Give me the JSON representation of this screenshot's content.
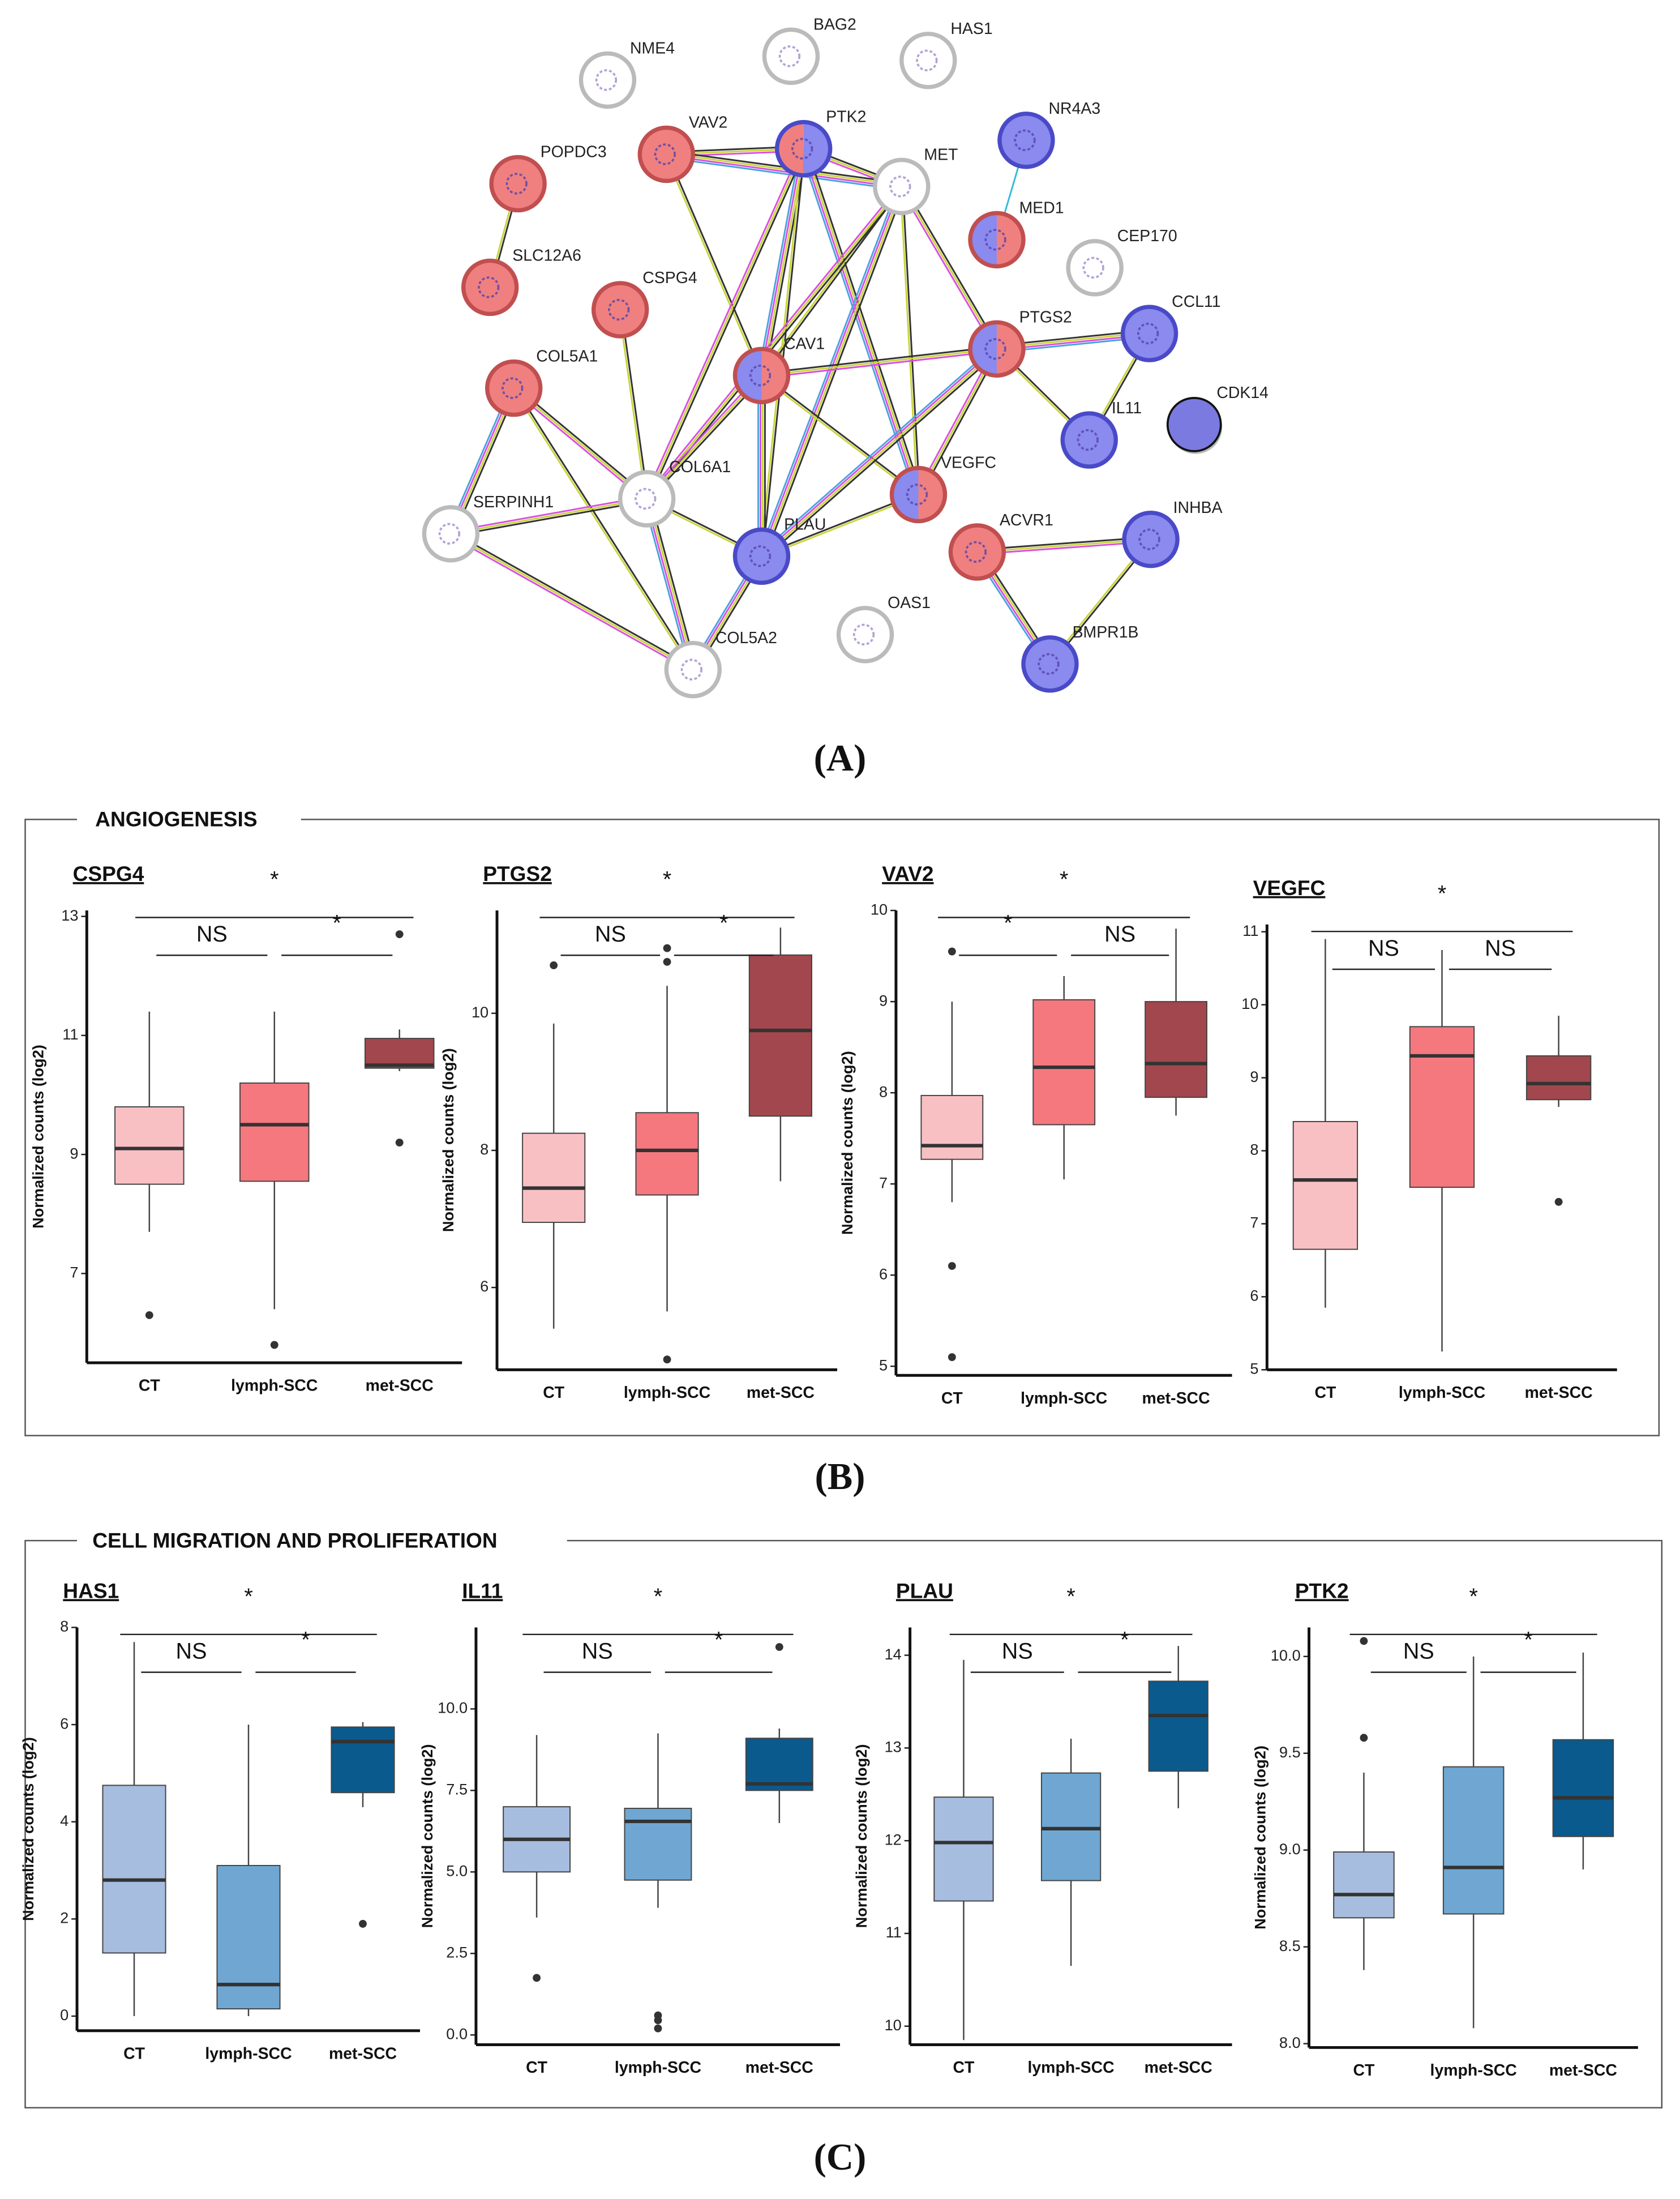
{
  "panel_labels": [
    "(A)",
    "(B)",
    "(C)"
  ],
  "sections": [
    {
      "title": "ANGIOGENESIS"
    },
    {
      "title": "CELL MIGRATION AND PROLIFERATION"
    }
  ],
  "network": {
    "nodes": [
      {
        "label": "NME4",
        "fill": "white"
      },
      {
        "label": "BAG2",
        "fill": "white"
      },
      {
        "label": "HAS1",
        "fill": "white"
      },
      {
        "label": "VAV2",
        "fill": "red"
      },
      {
        "label": "PTK2",
        "fill": "red-blue"
      },
      {
        "label": "POPDC3",
        "fill": "red"
      },
      {
        "label": "MET",
        "fill": "white"
      },
      {
        "label": "NR4A3",
        "fill": "blue"
      },
      {
        "label": "MED1",
        "fill": "blue-red"
      },
      {
        "label": "CEP170",
        "fill": "white"
      },
      {
        "label": "SLC12A6",
        "fill": "red"
      },
      {
        "label": "CSPG4",
        "fill": "red"
      },
      {
        "label": "CAV1",
        "fill": "blue-red"
      },
      {
        "label": "PTGS2",
        "fill": "blue-red"
      },
      {
        "label": "CCL11",
        "fill": "blue"
      },
      {
        "label": "IL11",
        "fill": "blue"
      },
      {
        "label": "CDK14",
        "fill": "solid"
      },
      {
        "label": "COL5A1",
        "fill": "red"
      },
      {
        "label": "COL6A1",
        "fill": "white"
      },
      {
        "label": "VEGFC",
        "fill": "blue-red"
      },
      {
        "label": "SERPINH1",
        "fill": "white"
      },
      {
        "label": "PLAU",
        "fill": "blue"
      },
      {
        "label": "ACVR1",
        "fill": "red"
      },
      {
        "label": "INHBA",
        "fill": "blue"
      },
      {
        "label": "OAS1",
        "fill": "white"
      },
      {
        "label": "COL5A2",
        "fill": "white"
      },
      {
        "label": "BMPR1B",
        "fill": "blue"
      }
    ],
    "edges": [
      [
        5,
        10
      ],
      [
        3,
        4
      ],
      [
        3,
        6
      ],
      [
        3,
        12
      ],
      [
        4,
        6
      ],
      [
        4,
        12
      ],
      [
        4,
        21
      ],
      [
        4,
        18
      ],
      [
        4,
        19
      ],
      [
        6,
        12
      ],
      [
        6,
        13
      ],
      [
        6,
        21
      ],
      [
        6,
        19
      ],
      [
        6,
        18
      ],
      [
        7,
        8
      ],
      [
        11,
        18
      ],
      [
        12,
        13
      ],
      [
        12,
        21
      ],
      [
        12,
        19
      ],
      [
        12,
        18
      ],
      [
        13,
        14
      ],
      [
        13,
        15
      ],
      [
        13,
        19
      ],
      [
        13,
        21
      ],
      [
        14,
        15
      ],
      [
        17,
        18
      ],
      [
        17,
        20
      ],
      [
        17,
        25
      ],
      [
        18,
        20
      ],
      [
        18,
        25
      ],
      [
        18,
        21
      ],
      [
        20,
        25
      ],
      [
        21,
        25
      ],
      [
        21,
        19
      ],
      [
        22,
        23
      ],
      [
        22,
        26
      ],
      [
        23,
        26
      ]
    ]
  },
  "chart_data": [
    {
      "type": "box",
      "section": 0,
      "title": "CSPG4",
      "y_label": "Normalized counts (log2)",
      "categories": [
        "CT",
        "lymph-SCC",
        "met-SCC"
      ],
      "colors": [
        "#f9c0c4",
        "#f5787f",
        "#a2474d"
      ],
      "ylim": [
        5.5,
        13.1
      ],
      "yticks": [
        7,
        9,
        11,
        13
      ],
      "boxes": [
        {
          "min": 7.7,
          "q1": 8.5,
          "median": 9.1,
          "q3": 9.8,
          "max": 11.4,
          "outliers": [
            6.3
          ]
        },
        {
          "min": 6.4,
          "q1": 8.55,
          "median": 9.5,
          "q3": 10.2,
          "max": 11.4,
          "outliers": [
            5.8
          ]
        },
        {
          "min": 10.4,
          "q1": 10.45,
          "median": 10.5,
          "q3": 10.95,
          "max": 11.1,
          "outliers": [
            12.7,
            9.2
          ]
        }
      ],
      "annotations": [
        {
          "pair": [
            0,
            2
          ],
          "label": "*"
        },
        {
          "pair": [
            0,
            1
          ],
          "label": "NS"
        },
        {
          "pair": [
            1,
            2
          ],
          "label": "*"
        }
      ]
    },
    {
      "type": "box",
      "section": 0,
      "title": "PTGS2",
      "y_label": "Normalized counts (log2)",
      "categories": [
        "CT",
        "lymph-SCC",
        "met-SCC"
      ],
      "colors": [
        "#f9c0c4",
        "#f5787f",
        "#a2474d"
      ],
      "ylim": [
        4.8,
        11.5
      ],
      "yticks": [
        6,
        8,
        10
      ],
      "boxes": [
        {
          "min": 5.4,
          "q1": 6.95,
          "median": 7.45,
          "q3": 8.25,
          "max": 9.85,
          "outliers": [
            10.7
          ]
        },
        {
          "min": 5.65,
          "q1": 7.35,
          "median": 8.0,
          "q3": 8.55,
          "max": 10.4,
          "outliers": [
            10.95,
            10.75,
            4.95
          ]
        },
        {
          "min": 7.55,
          "q1": 8.5,
          "median": 9.75,
          "q3": 10.85,
          "max": 11.25,
          "outliers": []
        }
      ],
      "annotations": [
        {
          "pair": [
            0,
            2
          ],
          "label": "*"
        },
        {
          "pair": [
            0,
            1
          ],
          "label": "NS"
        },
        {
          "pair": [
            1,
            2
          ],
          "label": "*"
        }
      ]
    },
    {
      "type": "box",
      "section": 0,
      "title": "VAV2",
      "y_label": "Normalized counts (log2)",
      "categories": [
        "CT",
        "lymph-SCC",
        "met-SCC"
      ],
      "colors": [
        "#f9c0c4",
        "#f5787f",
        "#a2474d"
      ],
      "ylim": [
        4.9,
        10
      ],
      "yticks": [
        5,
        6,
        7,
        8,
        9,
        10
      ],
      "boxes": [
        {
          "min": 6.8,
          "q1": 7.27,
          "median": 7.42,
          "q3": 7.97,
          "max": 9.0,
          "outliers": [
            9.55,
            6.1,
            5.1
          ]
        },
        {
          "min": 7.05,
          "q1": 7.65,
          "median": 8.28,
          "q3": 9.02,
          "max": 9.28,
          "outliers": []
        },
        {
          "min": 7.75,
          "q1": 7.95,
          "median": 8.32,
          "q3": 9.0,
          "max": 9.8,
          "outliers": []
        }
      ],
      "annotations": [
        {
          "pair": [
            0,
            2
          ],
          "label": "*"
        },
        {
          "pair": [
            0,
            1
          ],
          "label": "*"
        },
        {
          "pair": [
            1,
            2
          ],
          "label": "NS"
        }
      ]
    },
    {
      "type": "box",
      "section": 0,
      "title": "VEGFC",
      "categories": [
        "CT",
        "lymph-SCC",
        "met-SCC"
      ],
      "colors": [
        "#f9c0c4",
        "#f5787f",
        "#a2474d"
      ],
      "ylim": [
        5,
        11.1
      ],
      "yticks": [
        5,
        6,
        7,
        8,
        9,
        10,
        11
      ],
      "boxes": [
        {
          "min": 5.85,
          "q1": 6.65,
          "median": 7.6,
          "q3": 8.4,
          "max": 10.9,
          "outliers": []
        },
        {
          "min": 5.25,
          "q1": 7.5,
          "median": 9.3,
          "q3": 9.7,
          "max": 10.75,
          "outliers": []
        },
        {
          "min": 8.6,
          "q1": 8.7,
          "median": 8.92,
          "q3": 9.3,
          "max": 9.85,
          "outliers": [
            7.3
          ]
        }
      ],
      "annotations": [
        {
          "pair": [
            0,
            2
          ],
          "label": "*"
        },
        {
          "pair": [
            0,
            1
          ],
          "label": "NS"
        },
        {
          "pair": [
            1,
            2
          ],
          "label": "NS"
        }
      ]
    },
    {
      "type": "box",
      "section": 1,
      "title": "HAS1",
      "y_label": "Normalized counts (log2)",
      "categories": [
        "CT",
        "lymph-SCC",
        "met-SCC"
      ],
      "colors": [
        "#a7bddf",
        "#6fa7d2",
        "#0b5a8d"
      ],
      "ylim": [
        -0.3,
        8
      ],
      "yticks": [
        0,
        2,
        4,
        6,
        8
      ],
      "boxes": [
        {
          "min": 0,
          "q1": 1.3,
          "median": 2.8,
          "q3": 4.75,
          "max": 7.7,
          "outliers": []
        },
        {
          "min": 0,
          "q1": 0.15,
          "median": 0.65,
          "q3": 3.1,
          "max": 6.0,
          "outliers": []
        },
        {
          "min": 4.3,
          "q1": 4.6,
          "median": 5.65,
          "q3": 5.95,
          "max": 6.05,
          "outliers": [
            1.9
          ]
        }
      ],
      "annotations": [
        {
          "pair": [
            0,
            2
          ],
          "label": "*"
        },
        {
          "pair": [
            0,
            1
          ],
          "label": "NS"
        },
        {
          "pair": [
            1,
            2
          ],
          "label": "*"
        }
      ]
    },
    {
      "type": "box",
      "section": 1,
      "title": "IL11",
      "y_label": "Normalized counts (log2)",
      "categories": [
        "CT",
        "lymph-SCC",
        "met-SCC"
      ],
      "colors": [
        "#a7bddf",
        "#6fa7d2",
        "#0b5a8d"
      ],
      "ylim": [
        -0.3,
        12.5
      ],
      "yticks": [
        {
          "value": 0,
          "label": "0.0"
        },
        {
          "value": 2.5,
          "label": "2.5"
        },
        {
          "value": 5,
          "label": "5.0"
        },
        {
          "value": 7.5,
          "label": "7.5"
        },
        {
          "value": 10,
          "label": "10.0"
        }
      ],
      "boxes": [
        {
          "min": 3.6,
          "q1": 5.0,
          "median": 6.0,
          "q3": 7.0,
          "max": 9.2,
          "outliers": [
            1.75
          ]
        },
        {
          "min": 3.9,
          "q1": 4.75,
          "median": 6.55,
          "q3": 6.95,
          "max": 9.25,
          "outliers": [
            0.6,
            0.45,
            0.2
          ]
        },
        {
          "min": 6.5,
          "q1": 7.5,
          "median": 7.7,
          "q3": 9.1,
          "max": 9.4,
          "outliers": [
            11.9
          ]
        }
      ],
      "annotations": [
        {
          "pair": [
            0,
            2
          ],
          "label": "*"
        },
        {
          "pair": [
            0,
            1
          ],
          "label": "NS"
        },
        {
          "pair": [
            1,
            2
          ],
          "label": "*"
        }
      ]
    },
    {
      "type": "box",
      "section": 1,
      "title": "PLAU",
      "y_label": "Normalized counts (log2)",
      "categories": [
        "CT",
        "lymph-SCC",
        "met-SCC"
      ],
      "colors": [
        "#a7bddf",
        "#6fa7d2",
        "#0b5a8d"
      ],
      "ylim": [
        9.8,
        14.3
      ],
      "yticks": [
        10,
        11,
        12,
        13,
        14
      ],
      "boxes": [
        {
          "min": 9.85,
          "q1": 11.35,
          "median": 11.98,
          "q3": 12.47,
          "max": 13.95,
          "outliers": []
        },
        {
          "min": 10.65,
          "q1": 11.57,
          "median": 12.13,
          "q3": 12.73,
          "max": 13.1,
          "outliers": []
        },
        {
          "min": 12.35,
          "q1": 12.75,
          "median": 13.35,
          "q3": 13.72,
          "max": 14.1,
          "outliers": []
        }
      ],
      "annotations": [
        {
          "pair": [
            0,
            2
          ],
          "label": "*"
        },
        {
          "pair": [
            0,
            1
          ],
          "label": "NS"
        },
        {
          "pair": [
            1,
            2
          ],
          "label": "*"
        }
      ]
    },
    {
      "type": "box",
      "section": 1,
      "title": "PTK2",
      "y_label": "Normalized counts (log2)",
      "categories": [
        "CT",
        "lymph-SCC",
        "met-SCC"
      ],
      "colors": [
        "#a7bddf",
        "#6fa7d2",
        "#0b5a8d"
      ],
      "ylim": [
        7.98,
        10.15
      ],
      "yticks": [
        {
          "value": 8,
          "label": "8.0"
        },
        {
          "value": 8.5,
          "label": "8.5"
        },
        {
          "value": 9,
          "label": "9.0"
        },
        {
          "value": 9.5,
          "label": "9.5"
        },
        {
          "value": 10,
          "label": "10.0"
        }
      ],
      "boxes": [
        {
          "min": 8.38,
          "q1": 8.65,
          "median": 8.77,
          "q3": 8.99,
          "max": 9.4,
          "outliers": [
            9.58,
            10.08
          ]
        },
        {
          "min": 8.08,
          "q1": 8.67,
          "median": 8.91,
          "q3": 9.43,
          "max": 10.0,
          "outliers": []
        },
        {
          "min": 8.9,
          "q1": 9.07,
          "median": 9.27,
          "q3": 9.57,
          "max": 10.02,
          "outliers": []
        }
      ],
      "annotations": [
        {
          "pair": [
            0,
            2
          ],
          "label": "*"
        },
        {
          "pair": [
            0,
            1
          ],
          "label": "NS"
        },
        {
          "pair": [
            1,
            2
          ],
          "label": "*"
        }
      ]
    }
  ]
}
